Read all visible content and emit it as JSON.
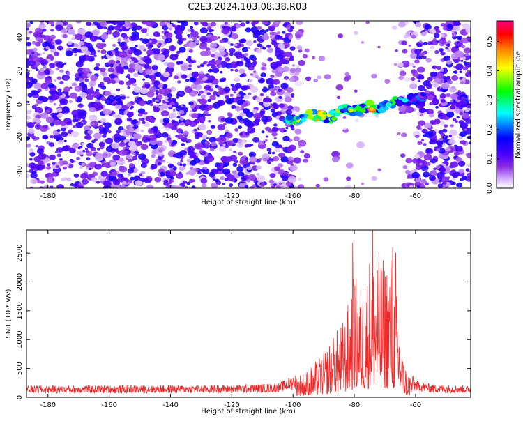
{
  "title": "C2E3.2024.103.08.38.R03",
  "chart_data": [
    {
      "type": "heatmap",
      "xlabel": "Height of straight line (km)",
      "ylabel": "Frequency (Hz)",
      "xlim": [
        -187,
        -42
      ],
      "ylim": [
        -50,
        50
      ],
      "xticks": [
        -180,
        -160,
        -140,
        -120,
        -100,
        -80,
        -60
      ],
      "yticks": [
        -40,
        -20,
        0,
        20,
        40
      ],
      "colorbar": {
        "label": "Normalized spectral amplitude",
        "range": [
          0.0,
          0.57
        ],
        "ticks": [
          0.0,
          0.1,
          0.2,
          0.3,
          0.4,
          0.5
        ],
        "colormap": [
          "#ffffff",
          "#d9b8ff",
          "#8a2be2",
          "#4b00ff",
          "#0000ff",
          "#00ffff",
          "#00ff00",
          "#ffff00",
          "#ff8000",
          "#ff0000",
          "#ff0080"
        ]
      },
      "signal_band": [
        {
          "x": -102,
          "y": -9,
          "amp": 0.3
        },
        {
          "x": -99,
          "y": -9,
          "amp": 0.38
        },
        {
          "x": -95,
          "y": -6,
          "amp": 0.45
        },
        {
          "x": -91,
          "y": -7,
          "amp": 0.4
        },
        {
          "x": -88,
          "y": -8,
          "amp": 0.45
        },
        {
          "x": -84,
          "y": -4,
          "amp": 0.3
        },
        {
          "x": -81,
          "y": -3,
          "amp": 0.42
        },
        {
          "x": -78,
          "y": -3,
          "amp": 0.36
        },
        {
          "x": -75,
          "y": -1,
          "amp": 0.45
        },
        {
          "x": -72,
          "y": -2,
          "amp": 0.3
        },
        {
          "x": -69,
          "y": 0,
          "amp": 0.32
        },
        {
          "x": -66,
          "y": 2,
          "amp": 0.24
        },
        {
          "x": -62,
          "y": 3,
          "amp": 0.2
        },
        {
          "x": -58,
          "y": 4,
          "amp": 0.14
        },
        {
          "x": -48,
          "y": 0,
          "amp": 0.1
        },
        {
          "x": -44,
          "y": 2,
          "amp": 0.18
        }
      ],
      "quiet_region": [
        -97,
        -65
      ]
    },
    {
      "type": "line",
      "xlabel": "Height of straight line (km)",
      "ylabel": "SNR (10 * v/v)",
      "xlim": [
        -187,
        -42
      ],
      "ylim": [
        0,
        2900
      ],
      "xticks": [
        -180,
        -160,
        -140,
        -120,
        -100,
        -80,
        -60
      ],
      "yticks": [
        0,
        500,
        1000,
        1500,
        2000,
        2500
      ],
      "color": "#ee2a2a",
      "envelope": [
        {
          "x": -187,
          "y": 150
        },
        {
          "x": -120,
          "y": 160
        },
        {
          "x": -105,
          "y": 180
        },
        {
          "x": -100,
          "y": 280
        },
        {
          "x": -95,
          "y": 380
        },
        {
          "x": -90,
          "y": 620
        },
        {
          "x": -86,
          "y": 900
        },
        {
          "x": -83,
          "y": 1100
        },
        {
          "x": -80,
          "y": 1700
        },
        {
          "x": -77,
          "y": 1500
        },
        {
          "x": -74,
          "y": 2200
        },
        {
          "x": -71,
          "y": 1900
        },
        {
          "x": -68,
          "y": 2000
        },
        {
          "x": -66,
          "y": 1400
        },
        {
          "x": -64,
          "y": 500
        },
        {
          "x": -60,
          "y": 220
        },
        {
          "x": -55,
          "y": 170
        },
        {
          "x": -42,
          "y": 150
        }
      ],
      "peaks": [
        {
          "x": -80.5,
          "y": 2680
        },
        {
          "x": -74,
          "y": 2900
        },
        {
          "x": -67.5,
          "y": 2600
        },
        {
          "x": -66.5,
          "y": 2500
        }
      ]
    }
  ]
}
